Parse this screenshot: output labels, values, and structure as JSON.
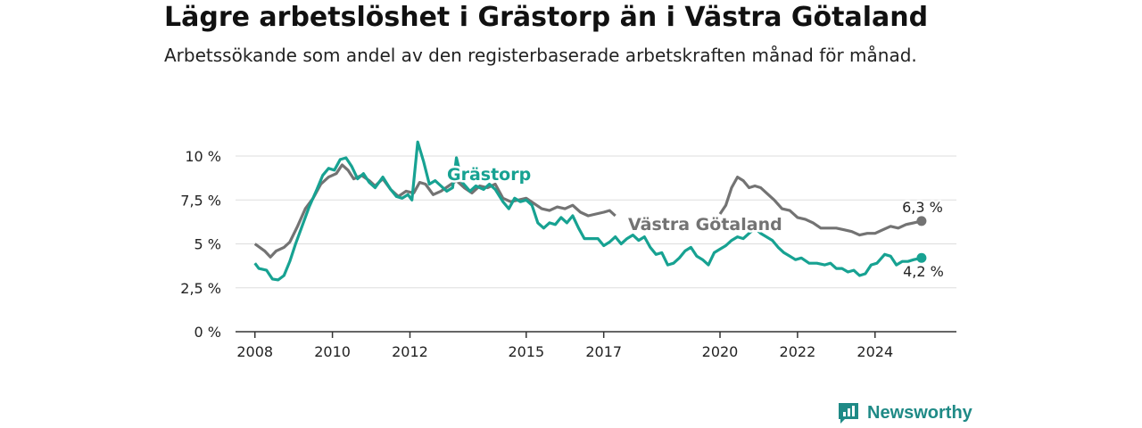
{
  "header": {
    "title": "Lägre arbetslöshet i Grästorp än i Västra Götaland",
    "subtitle": "Arbetssökande som andel av den registerbaserade arbetskraften månad för månad."
  },
  "brand": {
    "name": "Newsworthy",
    "icon": "newsworthy-logo-icon"
  },
  "chart_data": {
    "type": "line",
    "title": "Lägre arbetslöshet i Grästorp än i Västra Götaland",
    "subtitle": "Arbetssökande som andel av den registerbaserade arbetskraften månad för månad.",
    "xlabel": "",
    "ylabel": "",
    "xlim": [
      2007.5,
      2026.1
    ],
    "ylim": [
      0,
      10
    ],
    "x_ticks": [
      {
        "value": 2008,
        "label": "2008"
      },
      {
        "value": 2010,
        "label": "2010"
      },
      {
        "value": 2012,
        "label": "2012"
      },
      {
        "value": 2015,
        "label": "2015"
      },
      {
        "value": 2017,
        "label": "2017"
      },
      {
        "value": 2020,
        "label": "2020"
      },
      {
        "value": 2022,
        "label": "2022"
      },
      {
        "value": 2024,
        "label": "2024"
      }
    ],
    "y_ticks": [
      {
        "value": 0,
        "label": "0 %"
      },
      {
        "value": 2.5,
        "label": "2,5 %"
      },
      {
        "value": 5,
        "label": "5 %"
      },
      {
        "value": 7.5,
        "label": "7,5 %"
      },
      {
        "value": 10,
        "label": "10 %"
      }
    ],
    "grid": true,
    "legend": "inline labels",
    "series": [
      {
        "name": "Västra Götaland",
        "color": "#737373",
        "end_label": "6,3 %",
        "points": [
          [
            2008.0,
            5.0
          ],
          [
            2008.25,
            4.6
          ],
          [
            2008.4,
            4.25
          ],
          [
            2008.55,
            4.6
          ],
          [
            2008.75,
            4.8
          ],
          [
            2008.9,
            5.1
          ],
          [
            2009.1,
            6.0
          ],
          [
            2009.3,
            7.0
          ],
          [
            2009.5,
            7.6
          ],
          [
            2009.7,
            8.4
          ],
          [
            2009.9,
            8.8
          ],
          [
            2010.1,
            9.0
          ],
          [
            2010.25,
            9.5
          ],
          [
            2010.4,
            9.2
          ],
          [
            2010.55,
            8.7
          ],
          [
            2010.75,
            8.9
          ],
          [
            2010.95,
            8.6
          ],
          [
            2011.1,
            8.3
          ],
          [
            2011.3,
            8.7
          ],
          [
            2011.5,
            8.1
          ],
          [
            2011.7,
            7.7
          ],
          [
            2011.9,
            8.0
          ],
          [
            2012.1,
            7.9
          ],
          [
            2012.25,
            8.5
          ],
          [
            2012.4,
            8.4
          ],
          [
            2012.6,
            7.8
          ],
          [
            2012.8,
            8.0
          ],
          [
            2013.0,
            8.3
          ],
          [
            2013.2,
            8.6
          ],
          [
            2013.4,
            8.2
          ],
          [
            2013.6,
            7.9
          ],
          [
            2013.8,
            8.3
          ],
          [
            2014.0,
            8.2
          ],
          [
            2014.2,
            8.4
          ],
          [
            2014.4,
            7.6
          ],
          [
            2014.6,
            7.4
          ],
          [
            2014.8,
            7.5
          ],
          [
            2015.0,
            7.6
          ],
          [
            2015.2,
            7.3
          ],
          [
            2015.4,
            7.0
          ],
          [
            2015.6,
            6.9
          ],
          [
            2015.8,
            7.1
          ],
          [
            2016.0,
            7.0
          ],
          [
            2016.2,
            7.2
          ],
          [
            2016.4,
            6.8
          ],
          [
            2016.6,
            6.6
          ],
          [
            2016.8,
            6.7
          ],
          [
            2017.0,
            6.8
          ],
          [
            2017.15,
            6.9
          ],
          [
            2017.3,
            6.6
          ]
        ],
        "points_b": [
          [
            2020.0,
            6.7
          ],
          [
            2020.15,
            7.2
          ],
          [
            2020.3,
            8.2
          ],
          [
            2020.45,
            8.8
          ],
          [
            2020.6,
            8.6
          ],
          [
            2020.75,
            8.2
          ],
          [
            2020.9,
            8.3
          ],
          [
            2021.05,
            8.2
          ],
          [
            2021.2,
            7.9
          ],
          [
            2021.4,
            7.5
          ],
          [
            2021.6,
            7.0
          ],
          [
            2021.8,
            6.9
          ],
          [
            2022.0,
            6.5
          ],
          [
            2022.2,
            6.4
          ],
          [
            2022.4,
            6.2
          ],
          [
            2022.6,
            5.9
          ],
          [
            2022.8,
            5.9
          ],
          [
            2023.0,
            5.9
          ],
          [
            2023.2,
            5.8
          ],
          [
            2023.4,
            5.7
          ],
          [
            2023.6,
            5.5
          ],
          [
            2023.8,
            5.6
          ],
          [
            2024.0,
            5.6
          ],
          [
            2024.2,
            5.8
          ],
          [
            2024.4,
            6.0
          ],
          [
            2024.6,
            5.9
          ],
          [
            2024.8,
            6.1
          ],
          [
            2025.0,
            6.2
          ],
          [
            2025.2,
            6.3
          ]
        ]
      },
      {
        "name": "Grästorp",
        "color": "#17a292",
        "end_label": "4,2 %",
        "points": [
          [
            2008.0,
            3.9
          ],
          [
            2008.1,
            3.6
          ],
          [
            2008.3,
            3.5
          ],
          [
            2008.45,
            3.0
          ],
          [
            2008.6,
            2.95
          ],
          [
            2008.75,
            3.2
          ],
          [
            2008.9,
            4.0
          ],
          [
            2009.05,
            5.0
          ],
          [
            2009.2,
            5.9
          ],
          [
            2009.4,
            7.1
          ],
          [
            2009.6,
            8.1
          ],
          [
            2009.75,
            8.9
          ],
          [
            2009.9,
            9.3
          ],
          [
            2010.05,
            9.2
          ],
          [
            2010.2,
            9.8
          ],
          [
            2010.35,
            9.9
          ],
          [
            2010.5,
            9.4
          ],
          [
            2010.65,
            8.7
          ],
          [
            2010.8,
            9.0
          ],
          [
            2010.95,
            8.5
          ],
          [
            2011.1,
            8.2
          ],
          [
            2011.3,
            8.8
          ],
          [
            2011.5,
            8.1
          ],
          [
            2011.65,
            7.7
          ],
          [
            2011.8,
            7.6
          ],
          [
            2011.95,
            7.8
          ],
          [
            2012.05,
            7.5
          ],
          [
            2012.2,
            10.8
          ],
          [
            2012.35,
            9.7
          ],
          [
            2012.5,
            8.4
          ],
          [
            2012.65,
            8.6
          ],
          [
            2012.8,
            8.3
          ],
          [
            2012.95,
            8.0
          ],
          [
            2013.1,
            8.2
          ],
          [
            2013.2,
            9.9
          ],
          [
            2013.35,
            8.5
          ],
          [
            2013.55,
            8.0
          ],
          [
            2013.7,
            8.3
          ],
          [
            2013.9,
            8.1
          ],
          [
            2014.05,
            8.4
          ],
          [
            2014.2,
            8.1
          ],
          [
            2014.4,
            7.4
          ],
          [
            2014.55,
            7.0
          ],
          [
            2014.7,
            7.6
          ],
          [
            2014.85,
            7.4
          ],
          [
            2015.0,
            7.5
          ],
          [
            2015.15,
            7.2
          ],
          [
            2015.3,
            6.2
          ],
          [
            2015.45,
            5.9
          ],
          [
            2015.6,
            6.2
          ],
          [
            2015.75,
            6.1
          ],
          [
            2015.9,
            6.5
          ],
          [
            2016.05,
            6.2
          ],
          [
            2016.2,
            6.6
          ],
          [
            2016.35,
            5.9
          ],
          [
            2016.5,
            5.3
          ],
          [
            2016.7,
            5.3
          ],
          [
            2016.85,
            5.3
          ],
          [
            2017.0,
            4.9
          ],
          [
            2017.15,
            5.1
          ],
          [
            2017.3,
            5.4
          ],
          [
            2017.45,
            5.0
          ],
          [
            2017.6,
            5.3
          ],
          [
            2017.75,
            5.5
          ],
          [
            2017.9,
            5.2
          ],
          [
            2018.05,
            5.4
          ],
          [
            2018.2,
            4.8
          ],
          [
            2018.35,
            4.4
          ],
          [
            2018.5,
            4.5
          ],
          [
            2018.65,
            3.8
          ],
          [
            2018.8,
            3.9
          ],
          [
            2018.95,
            4.2
          ],
          [
            2019.1,
            4.6
          ],
          [
            2019.25,
            4.8
          ],
          [
            2019.4,
            4.3
          ],
          [
            2019.55,
            4.1
          ],
          [
            2019.7,
            3.8
          ],
          [
            2019.85,
            4.5
          ],
          [
            2020.0,
            4.7
          ],
          [
            2020.15,
            4.9
          ],
          [
            2020.3,
            5.2
          ],
          [
            2020.45,
            5.4
          ],
          [
            2020.6,
            5.3
          ],
          [
            2020.75,
            5.6
          ],
          [
            2020.9,
            5.9
          ],
          [
            2021.05,
            5.6
          ],
          [
            2021.2,
            5.4
          ],
          [
            2021.35,
            5.2
          ],
          [
            2021.5,
            4.8
          ],
          [
            2021.65,
            4.5
          ],
          [
            2021.8,
            4.3
          ],
          [
            2021.95,
            4.1
          ],
          [
            2022.1,
            4.2
          ],
          [
            2022.3,
            3.9
          ],
          [
            2022.5,
            3.9
          ],
          [
            2022.7,
            3.8
          ],
          [
            2022.85,
            3.9
          ],
          [
            2023.0,
            3.6
          ],
          [
            2023.15,
            3.6
          ],
          [
            2023.3,
            3.4
          ],
          [
            2023.45,
            3.5
          ],
          [
            2023.6,
            3.2
          ],
          [
            2023.75,
            3.3
          ],
          [
            2023.9,
            3.8
          ],
          [
            2024.05,
            3.9
          ],
          [
            2024.25,
            4.4
          ],
          [
            2024.4,
            4.3
          ],
          [
            2024.55,
            3.8
          ],
          [
            2024.7,
            4.0
          ],
          [
            2024.85,
            4.0
          ],
          [
            2025.0,
            4.1
          ],
          [
            2025.2,
            4.2
          ]
        ]
      }
    ]
  }
}
